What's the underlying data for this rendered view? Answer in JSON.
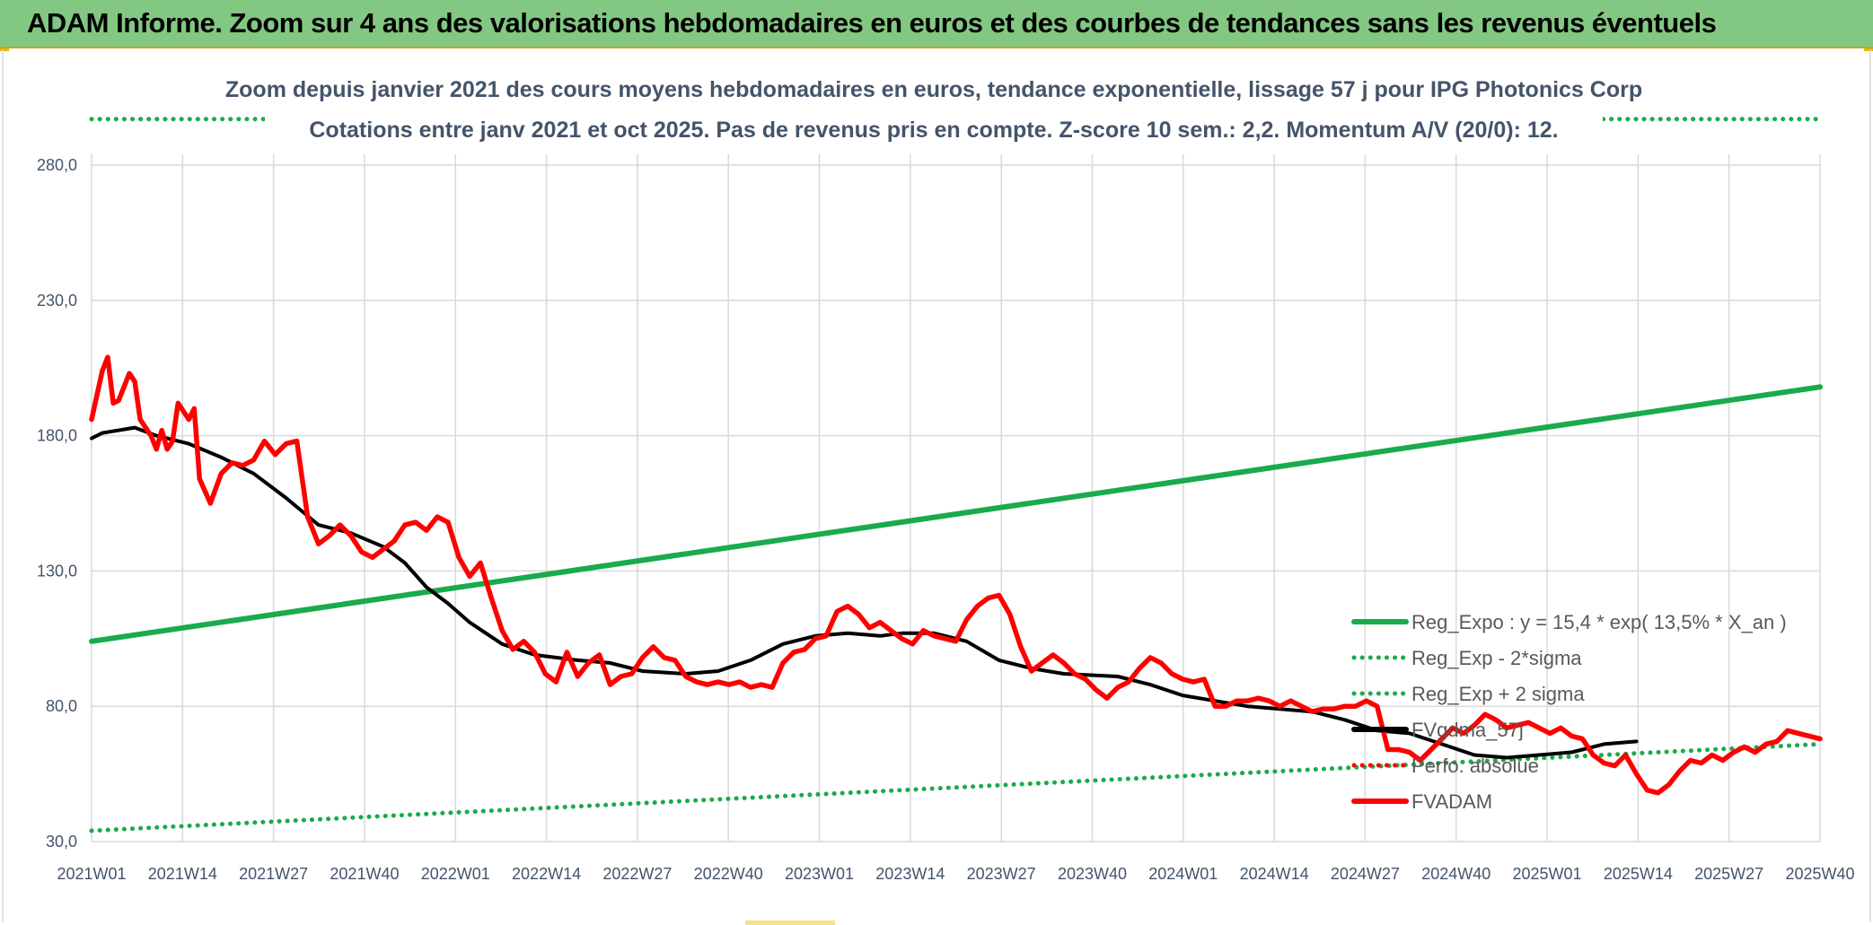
{
  "header": {
    "title": "ADAM Informe. Zoom sur 4 ans des valorisations hebdomadaires en euros et des courbes de tendances sans les revenus éventuels"
  },
  "colors": {
    "header_bg": "#82c882",
    "reg_expo": "#1aab4a",
    "sigma": "#1aab4a",
    "fvgdma": "#000000",
    "perfo": "#e00000",
    "fvadam": "#ff0000",
    "subtitle": "#44546a"
  },
  "chart_data": {
    "type": "line",
    "subtitle_lines": [
      "Zoom depuis janvier 2021 des cours moyens hebdomadaires en euros, tendance exponentielle, lissage 57 j pour IPG Photonics Corp",
      "Cotations entre janv 2021 et oct 2025. Pas de revenus pris en compte. Z-score 10 sem.: 2,2. Momentum A/V (20/0): 12."
    ],
    "y_ticks": [
      "30,0",
      "80,0",
      "130,0",
      "180,0",
      "230,0",
      "280,0"
    ],
    "ylim": [
      30,
      280
    ],
    "x_ticks": [
      "2021W01",
      "2021W14",
      "2021W27",
      "2021W40",
      "2022W01",
      "2022W14",
      "2022W27",
      "2022W40",
      "2023W01",
      "2023W14",
      "2023W27",
      "2023W40",
      "2024W01",
      "2024W14",
      "2024W27",
      "2024W40",
      "2025W01",
      "2025W14",
      "2025W27",
      "2025W40"
    ],
    "x_start_week": 0,
    "x_end_week": 247,
    "grid": true,
    "legend_position": "bottom-right",
    "legend": [
      {
        "key": "reg_expo",
        "label": "Reg_Expo : y = 15,4 * exp( 13,5% *  X_an )",
        "style": "solid-green"
      },
      {
        "key": "reg_minus",
        "label": "Reg_Exp - 2*sigma",
        "style": "dotted-green"
      },
      {
        "key": "reg_plus",
        "label": "Reg_Exp + 2 sigma",
        "style": "dotted-green"
      },
      {
        "key": "fvgdma",
        "label": "FVgdma_57j",
        "style": "solid-black"
      },
      {
        "key": "perfo",
        "label": "Perfo. absolue",
        "style": "dotted-red"
      },
      {
        "key": "fvadam",
        "label": "FVADAM",
        "style": "solid-red"
      }
    ],
    "series": [
      {
        "key": "reg_expo",
        "points": [
          [
            0,
            104
          ],
          [
            247,
            198
          ]
        ]
      },
      {
        "key": "reg_minus",
        "points": [
          [
            0,
            34
          ],
          [
            247,
            66
          ]
        ]
      },
      {
        "key": "reg_plus",
        "points": [
          [
            0,
            297
          ],
          [
            247,
            297
          ]
        ]
      },
      {
        "key": "fvgdma",
        "points": [
          [
            0,
            179
          ],
          [
            2,
            181
          ],
          [
            5,
            182
          ],
          [
            8,
            183
          ],
          [
            12,
            180
          ],
          [
            18,
            177
          ],
          [
            24,
            172
          ],
          [
            30,
            166
          ],
          [
            36,
            157
          ],
          [
            42,
            147
          ],
          [
            48,
            144
          ],
          [
            54,
            139
          ],
          [
            58,
            133
          ],
          [
            62,
            124
          ],
          [
            66,
            118
          ],
          [
            70,
            111
          ],
          [
            76,
            103
          ],
          [
            82,
            99
          ],
          [
            90,
            97
          ],
          [
            96,
            96
          ],
          [
            102,
            93
          ],
          [
            110,
            92
          ],
          [
            116,
            93
          ],
          [
            122,
            97
          ],
          [
            128,
            103
          ],
          [
            134,
            106
          ],
          [
            140,
            107
          ],
          [
            146,
            106
          ],
          [
            150,
            107
          ],
          [
            156,
            107
          ],
          [
            162,
            104
          ],
          [
            168,
            97
          ],
          [
            174,
            94
          ],
          [
            180,
            92
          ],
          [
            190,
            91
          ],
          [
            196,
            88
          ],
          [
            202,
            84
          ],
          [
            208,
            82
          ],
          [
            214,
            80
          ],
          [
            220,
            79
          ],
          [
            226,
            78
          ],
          [
            232,
            75
          ],
          [
            238,
            71
          ],
          [
            244,
            70
          ],
          [
            250,
            66
          ],
          [
            256,
            62
          ],
          [
            262,
            61
          ],
          [
            268,
            62
          ],
          [
            274,
            63
          ],
          [
            280,
            66
          ],
          [
            286,
            67
          ]
        ]
      },
      {
        "key": "fvadam",
        "points": [
          [
            0,
            186
          ],
          [
            1,
            195
          ],
          [
            2,
            204
          ],
          [
            3,
            209
          ],
          [
            4,
            192
          ],
          [
            5,
            193
          ],
          [
            7,
            203
          ],
          [
            8,
            200
          ],
          [
            9,
            186
          ],
          [
            11,
            180
          ],
          [
            12,
            175
          ],
          [
            13,
            182
          ],
          [
            14,
            175
          ],
          [
            15,
            178
          ],
          [
            16,
            192
          ],
          [
            18,
            186
          ],
          [
            19,
            190
          ],
          [
            20,
            164
          ],
          [
            22,
            155
          ],
          [
            24,
            166
          ],
          [
            26,
            170
          ],
          [
            28,
            169
          ],
          [
            30,
            171
          ],
          [
            32,
            178
          ],
          [
            34,
            173
          ],
          [
            36,
            177
          ],
          [
            38,
            178
          ],
          [
            40,
            150
          ],
          [
            42,
            140
          ],
          [
            44,
            143
          ],
          [
            46,
            147
          ],
          [
            48,
            143
          ],
          [
            50,
            137
          ],
          [
            52,
            135
          ],
          [
            54,
            138
          ],
          [
            56,
            141
          ],
          [
            58,
            147
          ],
          [
            60,
            148
          ],
          [
            62,
            145
          ],
          [
            64,
            150
          ],
          [
            66,
            148
          ],
          [
            68,
            135
          ],
          [
            70,
            128
          ],
          [
            72,
            133
          ],
          [
            74,
            120
          ],
          [
            76,
            108
          ],
          [
            78,
            101
          ],
          [
            80,
            104
          ],
          [
            82,
            100
          ],
          [
            84,
            92
          ],
          [
            86,
            89
          ],
          [
            88,
            100
          ],
          [
            90,
            91
          ],
          [
            92,
            96
          ],
          [
            94,
            99
          ],
          [
            96,
            88
          ],
          [
            98,
            91
          ],
          [
            100,
            92
          ],
          [
            102,
            98
          ],
          [
            104,
            102
          ],
          [
            106,
            98
          ],
          [
            108,
            97
          ],
          [
            110,
            91
          ],
          [
            112,
            89
          ],
          [
            114,
            88
          ],
          [
            116,
            89
          ],
          [
            118,
            88
          ],
          [
            120,
            89
          ],
          [
            122,
            87
          ],
          [
            124,
            88
          ],
          [
            126,
            87
          ],
          [
            128,
            96
          ],
          [
            130,
            100
          ],
          [
            132,
            101
          ],
          [
            134,
            105
          ],
          [
            136,
            106
          ],
          [
            138,
            115
          ],
          [
            140,
            117
          ],
          [
            142,
            114
          ],
          [
            144,
            109
          ],
          [
            146,
            111
          ],
          [
            148,
            108
          ],
          [
            150,
            105
          ],
          [
            152,
            103
          ],
          [
            154,
            108
          ],
          [
            156,
            106
          ],
          [
            158,
            105
          ],
          [
            160,
            104
          ],
          [
            162,
            112
          ],
          [
            164,
            117
          ],
          [
            166,
            120
          ],
          [
            168,
            121
          ],
          [
            170,
            114
          ],
          [
            172,
            102
          ],
          [
            174,
            93
          ],
          [
            176,
            96
          ],
          [
            178,
            99
          ],
          [
            180,
            96
          ],
          [
            182,
            92
          ],
          [
            184,
            90
          ],
          [
            186,
            86
          ],
          [
            188,
            83
          ],
          [
            190,
            87
          ],
          [
            192,
            89
          ],
          [
            194,
            94
          ],
          [
            196,
            98
          ],
          [
            198,
            96
          ],
          [
            200,
            92
          ],
          [
            202,
            90
          ],
          [
            204,
            89
          ],
          [
            206,
            90
          ],
          [
            208,
            80
          ],
          [
            210,
            80
          ],
          [
            212,
            82
          ],
          [
            214,
            82
          ],
          [
            216,
            83
          ],
          [
            218,
            82
          ],
          [
            220,
            80
          ],
          [
            222,
            82
          ],
          [
            224,
            80
          ],
          [
            226,
            78
          ],
          [
            228,
            79
          ],
          [
            230,
            79
          ],
          [
            232,
            80
          ],
          [
            234,
            80
          ],
          [
            236,
            82
          ],
          [
            238,
            80
          ],
          [
            240,
            64
          ],
          [
            242,
            64
          ],
          [
            244,
            63
          ],
          [
            246,
            60
          ],
          [
            248,
            64
          ],
          [
            250,
            68
          ],
          [
            252,
            72
          ],
          [
            254,
            70
          ],
          [
            256,
            73
          ],
          [
            258,
            77
          ],
          [
            260,
            75
          ],
          [
            262,
            72
          ],
          [
            264,
            73
          ],
          [
            266,
            74
          ],
          [
            268,
            72
          ],
          [
            270,
            70
          ],
          [
            272,
            72
          ],
          [
            274,
            69
          ],
          [
            276,
            68
          ],
          [
            278,
            62
          ],
          [
            280,
            59
          ],
          [
            282,
            58
          ],
          [
            284,
            62
          ],
          [
            286,
            55
          ],
          [
            288,
            49
          ],
          [
            290,
            48
          ],
          [
            292,
            51
          ],
          [
            294,
            56
          ],
          [
            296,
            60
          ],
          [
            298,
            59
          ],
          [
            300,
            62
          ],
          [
            302,
            60
          ],
          [
            304,
            63
          ],
          [
            306,
            65
          ],
          [
            308,
            63
          ],
          [
            310,
            66
          ],
          [
            312,
            67
          ],
          [
            314,
            71
          ],
          [
            316,
            70
          ],
          [
            318,
            69
          ],
          [
            320,
            68
          ]
        ]
      }
    ]
  }
}
